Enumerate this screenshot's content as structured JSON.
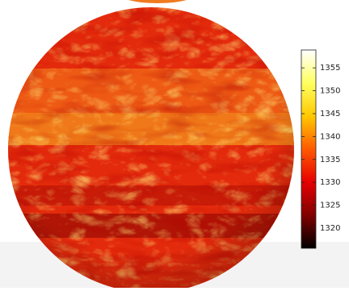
{
  "chart_data": {
    "type": "colorbar",
    "colormap": "hot",
    "clim": [
      1315.6,
      1358.9
    ],
    "cticks": [
      1320,
      1325,
      1330,
      1335,
      1340,
      1345,
      1350,
      1355
    ]
  }
}
